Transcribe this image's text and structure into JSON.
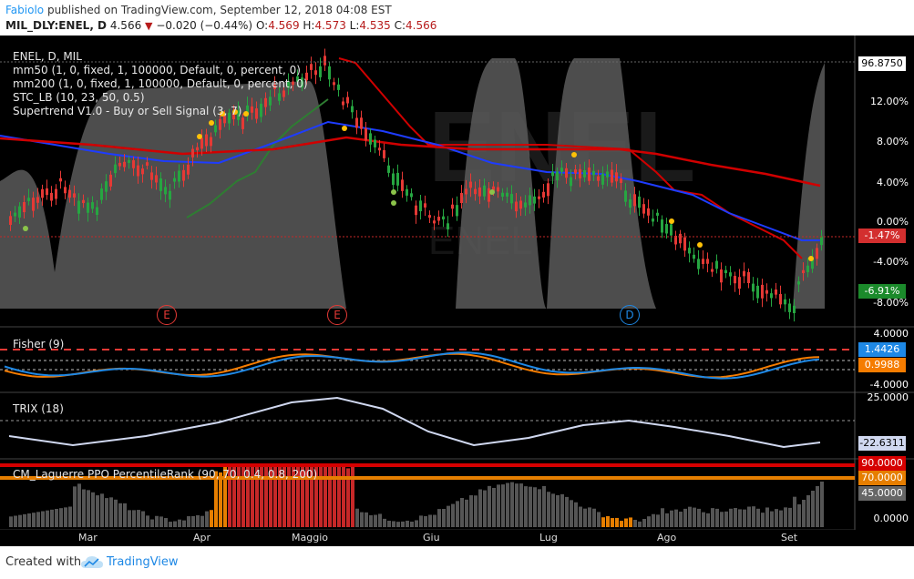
{
  "header": {
    "author": "Fabiolo",
    "published": "published on TradingView.com, September 12, 2018 04:08 EST",
    "symbol": "MIL_DLY:ENEL, D",
    "price": "4.566",
    "change": "−0.020 (−0.44%)",
    "ohlc_o_label": "O:",
    "ohlc_o": "4.569",
    "ohlc_h_label": "H:",
    "ohlc_h": "4.573",
    "ohlc_l_label": "L:",
    "ohlc_l": "4.535",
    "ohlc_c_label": "C:",
    "ohlc_c": "4.566"
  },
  "main_pane": {
    "title": "ENEL, D, MIL",
    "indicators": [
      "mm50 (1, 0, fixed, 1, 100000, Default, 0, percent, 0)",
      "mm200 (1, 0, fixed, 1, 100000, Default, 0, percent, 0)",
      "STC_LB (10, 23, 50, 0.5)",
      "Supertrend V1.0 - Buy or Sell Signal (3, 7)"
    ],
    "y_labels": [
      "96.8750",
      "12.00%",
      "8.00%",
      "4.00%",
      "0.00%",
      "-4.00%",
      "-8.00%"
    ],
    "tags": [
      {
        "text": "-1.47%",
        "color": "#d32f2f"
      },
      {
        "text": "-6.91%",
        "color": "#1b8a2b"
      }
    ],
    "markers": [
      "E",
      "E",
      "D"
    ],
    "watermark": "ENEL"
  },
  "fisher_pane": {
    "title": "Fisher (9)",
    "y_labels": [
      "4.0000",
      "-4.0000"
    ],
    "tags": [
      {
        "text": "1.4426",
        "color": "#1e88e5"
      },
      {
        "text": "0.9988",
        "color": "#f57c00"
      }
    ]
  },
  "trix_pane": {
    "title": "TRIX (18)",
    "y_labels": [
      "25.0000"
    ],
    "tags": [
      {
        "text": "-22.6311",
        "color": "#d0d8f0"
      }
    ]
  },
  "laguerre_pane": {
    "title": "CM_Laguerre PPO PercentileRank (90, 70, 0.4, 0.8, 200)",
    "y_labels": [
      "0.0000"
    ],
    "tags": [
      {
        "text": "90.0000",
        "color": "#d50000"
      },
      {
        "text": "70.0000",
        "color": "#e67e00"
      },
      {
        "text": "45.0000",
        "color": "#666666"
      }
    ]
  },
  "x_axis": [
    "Mar",
    "Apr",
    "Maggio",
    "Giu",
    "Lug",
    "Ago",
    "Set"
  ],
  "footer": {
    "created_with": "Created with",
    "brand": "TradingView"
  },
  "colors": {
    "background": "#000000",
    "up_candle": "#26a641",
    "down_candle": "#e53935",
    "mm50": "#1e3cff",
    "mm200": "#d00000",
    "stc": "#5a5a5a",
    "supertrend_up": "#2e7d32",
    "supertrend_down": "#d00000",
    "fisher": "#1e88e5",
    "fisher_signal": "#f57c00",
    "trix": "#d0d8f0"
  }
}
